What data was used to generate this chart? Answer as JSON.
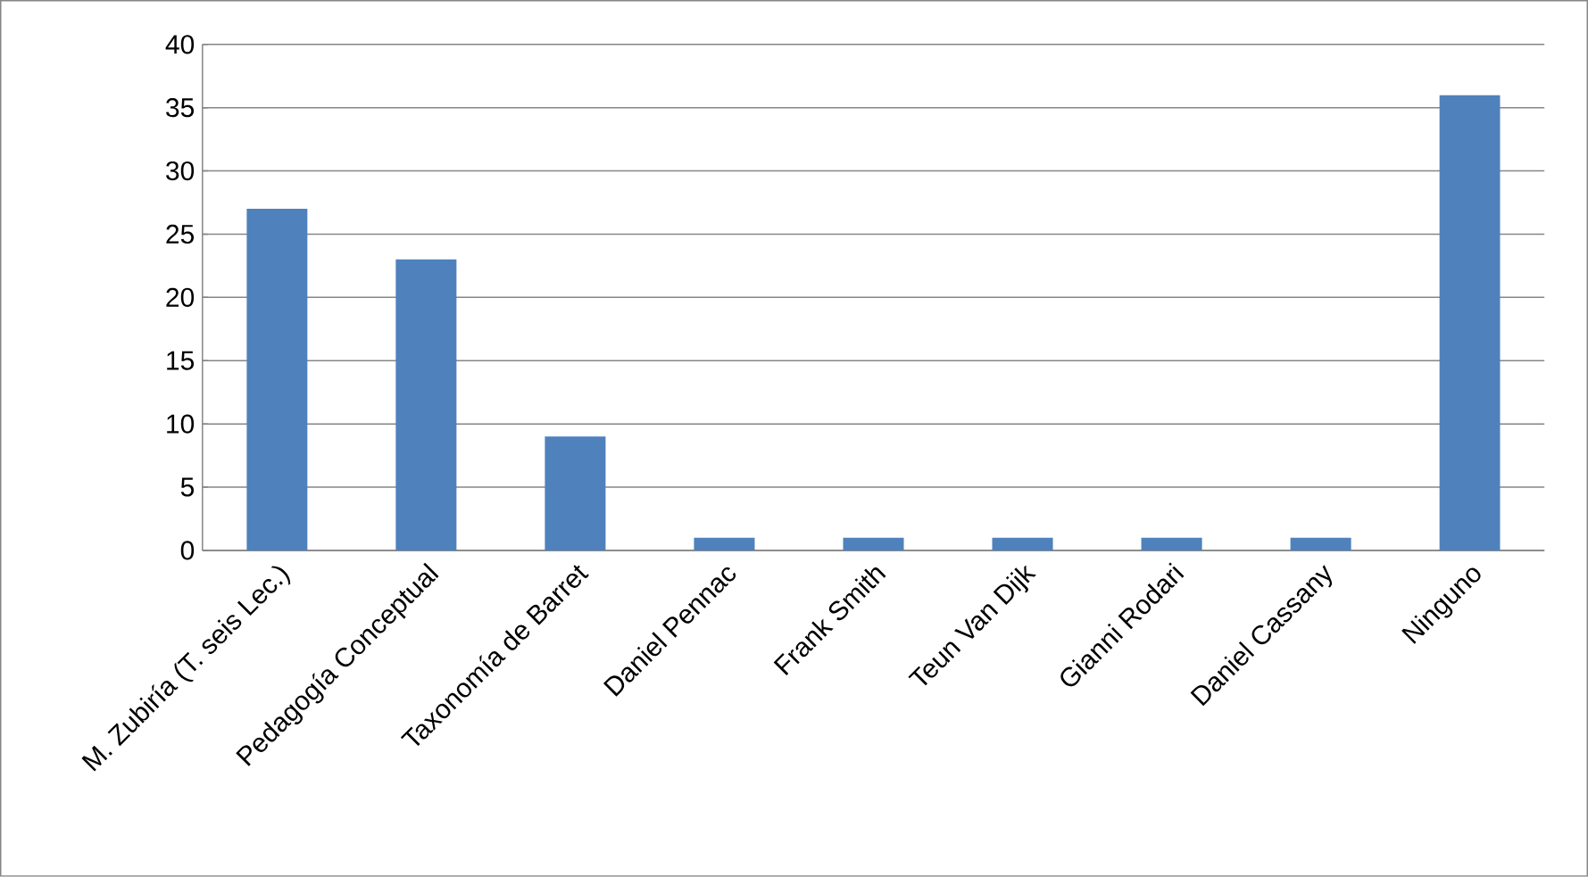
{
  "chart_data": {
    "type": "bar",
    "categories": [
      "M. Zubiría (T. seis Lec.)",
      "Pedagogía Conceptual",
      "Taxonomía de Barret",
      "Daniel Pennac",
      "Frank Smith",
      "Teun Van Dijk",
      "Gianni Rodari",
      "Daniel Cassany",
      "Ninguno"
    ],
    "values": [
      27,
      23,
      9,
      1,
      1,
      1,
      1,
      1,
      36
    ],
    "color": "#4f81bd",
    "ylim": [
      0,
      40
    ],
    "yticks": [
      0,
      5,
      10,
      15,
      20,
      25,
      30,
      35,
      40
    ],
    "grid": "y"
  }
}
